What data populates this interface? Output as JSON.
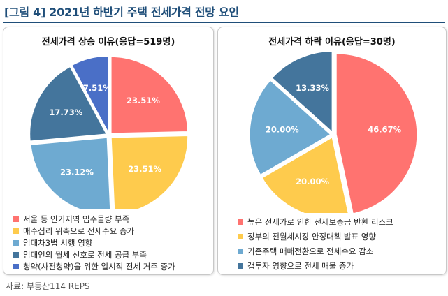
{
  "figure_title": "[그림 4] 2021년 하반기 주택 전세가격 전망 요인",
  "source": "자료: 부동산114 REPS",
  "colors": {
    "title": "#1f4e79",
    "red": "#ff7370",
    "yellow": "#fecb4d",
    "light_blue": "#6eaad1",
    "dark_blue": "#44759c",
    "purple_blue": "#4a6fc7"
  },
  "chart_data": [
    {
      "type": "pie",
      "title": "전세가격 상승 이유(응답=519명)",
      "slices": [
        {
          "label": "서울 등 인기지역 입주물량 부족",
          "value": 23.51,
          "value_label": "23.51%",
          "color": "#ff7370"
        },
        {
          "label": "매수심리 위축으로 전세수요 증가",
          "value": 23.51,
          "value_label": "23.51%",
          "color": "#fecb4d"
        },
        {
          "label": "임대차3법 시행 영향",
          "value": 23.12,
          "value_label": "23.12%",
          "color": "#6eaad1"
        },
        {
          "label": "임대인의 월세 선호로 전세 공급 부족",
          "value": 17.73,
          "value_label": "17.73%",
          "color": "#44759c"
        },
        {
          "label": "청약(사전청약)을 위한 일시적 전세 거주 증가",
          "value": 7.51,
          "value_label": "7.51%",
          "color": "#4a6fc7"
        }
      ]
    },
    {
      "type": "pie",
      "title": "전세가격 하락 이유(응답=30명)",
      "slices": [
        {
          "label": "높은 전세가로 인한 전세보증금 반환 리스크",
          "value": 46.67,
          "value_label": "46.67%",
          "color": "#ff7370"
        },
        {
          "label": "정부의 전월세시장 안정대책 발표 영향",
          "value": 20.0,
          "value_label": "20.00%",
          "color": "#fecb4d"
        },
        {
          "label": "기존주택 매매전환으로 전세수요 감소",
          "value": 20.0,
          "value_label": "20.00%",
          "color": "#6eaad1"
        },
        {
          "label": "갭투자 영향으로 전세 매물 증가",
          "value": 13.33,
          "value_label": "13.33%",
          "color": "#44759c"
        }
      ]
    }
  ]
}
